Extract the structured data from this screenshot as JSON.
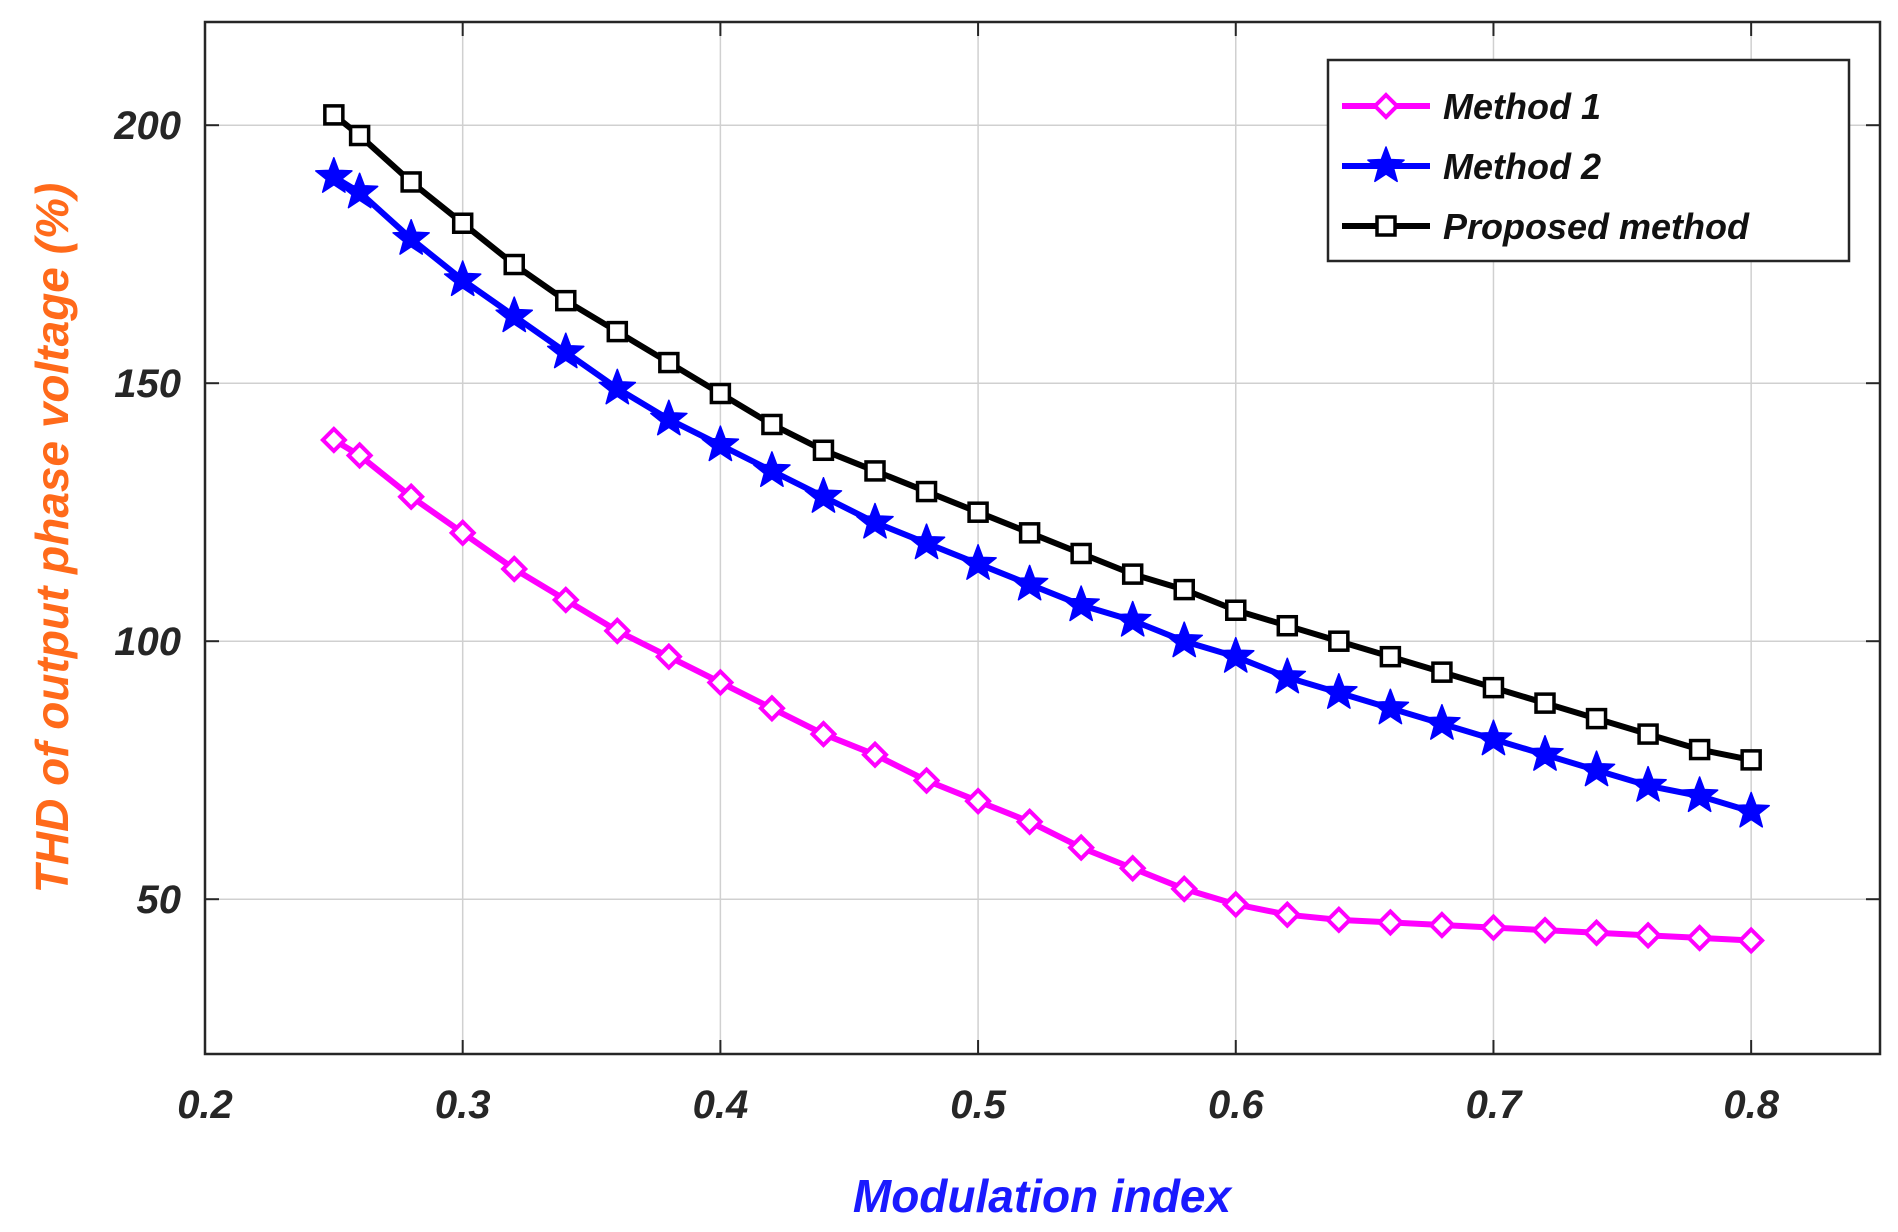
{
  "chart_data": {
    "type": "line",
    "title": "",
    "xlabel": "Modulation index",
    "ylabel": "THD of output phase voltage (%)",
    "xlim": [
      0.2,
      0.85
    ],
    "ylim": [
      20,
      220
    ],
    "xticks": [
      0.2,
      0.3,
      0.4,
      0.5,
      0.6,
      0.7,
      0.8
    ],
    "xtick_labels": [
      "0.2",
      "0.3",
      "0.4",
      "0.5",
      "0.6",
      "0.7",
      "0.8"
    ],
    "yticks": [
      50,
      100,
      150,
      200
    ],
    "ytick_labels": [
      "50",
      "100",
      "150",
      "200"
    ],
    "grid": true,
    "legend_position": "top-right",
    "x": [
      0.25,
      0.26,
      0.28,
      0.3,
      0.32,
      0.34,
      0.36,
      0.38,
      0.4,
      0.42,
      0.44,
      0.46,
      0.48,
      0.5,
      0.52,
      0.54,
      0.56,
      0.58,
      0.6,
      0.62,
      0.64,
      0.66,
      0.68,
      0.7,
      0.72,
      0.74,
      0.76,
      0.78,
      0.8
    ],
    "series": [
      {
        "name": "Method 1",
        "color": "#ff00ff",
        "marker": "diamond",
        "values": [
          139,
          136,
          128,
          121,
          114,
          108,
          102,
          97,
          92,
          87,
          82,
          78,
          73,
          69,
          65,
          60,
          56,
          52,
          49,
          47,
          46,
          45.5,
          45,
          44.5,
          44,
          43.5,
          43,
          42.5,
          42
        ]
      },
      {
        "name": "Method 2",
        "color": "#0000ff",
        "marker": "star",
        "values": [
          190,
          187,
          178,
          170,
          163,
          156,
          149,
          143,
          138,
          133,
          128,
          123,
          119,
          115,
          111,
          107,
          104,
          100,
          97,
          93,
          90,
          87,
          84,
          81,
          78,
          75,
          72,
          70,
          67
        ]
      },
      {
        "name": "Proposed method",
        "color": "#000000",
        "marker": "square",
        "values": [
          202,
          198,
          189,
          181,
          173,
          166,
          160,
          154,
          148,
          142,
          137,
          133,
          129,
          125,
          121,
          117,
          113,
          110,
          106,
          103,
          100,
          97,
          94,
          91,
          88,
          85,
          82,
          79,
          77
        ]
      }
    ],
    "colors": {
      "xlabel": "#1a1aff",
      "ylabel": "#ff6a1a",
      "axes": "#262626",
      "grid": "#d0d0d0"
    }
  }
}
